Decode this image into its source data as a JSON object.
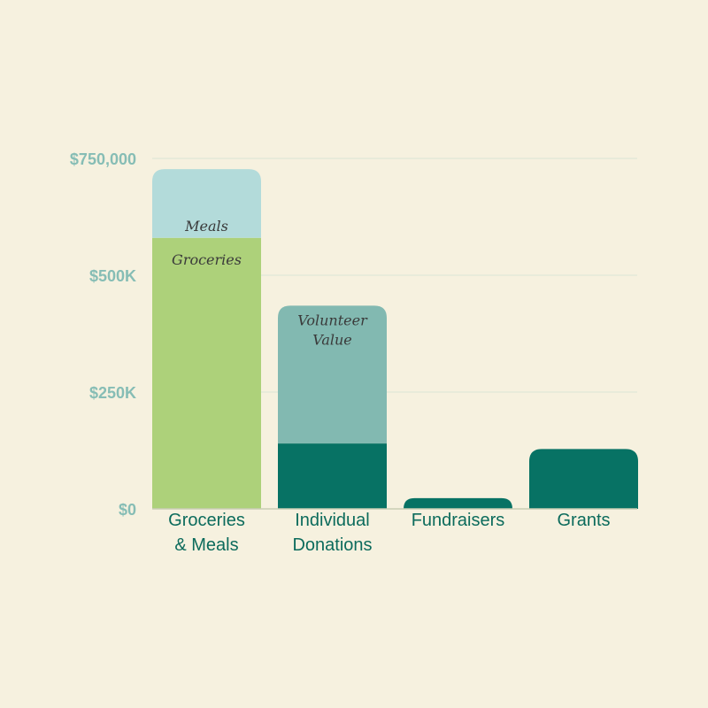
{
  "chart_data": {
    "type": "bar",
    "stacked": true,
    "categories": [
      [
        "Groceries",
        "& Meals"
      ],
      [
        "Individual",
        "Donations"
      ],
      [
        "Fundraisers"
      ],
      [
        "Grants"
      ]
    ],
    "yticks": [
      {
        "value": 0,
        "label": "$0"
      },
      {
        "value": 250000,
        "label": "$250K"
      },
      {
        "value": 500000,
        "label": "$500K"
      },
      {
        "value": 750000,
        "label": "$750,000"
      }
    ],
    "ylim": [
      0,
      750000
    ],
    "grid": true,
    "bars": [
      {
        "category_index": 0,
        "segments": [
          {
            "label": "Groceries",
            "value": 580000,
            "color": "#add17a"
          },
          {
            "label": "Meals",
            "value": 147000,
            "color": "#b3dbda"
          }
        ]
      },
      {
        "category_index": 1,
        "segments": [
          {
            "label": "",
            "value": 140000,
            "color": "#077264"
          },
          {
            "label": [
              "Volunteer",
              "Value"
            ],
            "value": 295000,
            "color": "#82b9b1"
          }
        ]
      },
      {
        "category_index": 2,
        "segments": [
          {
            "label": "",
            "value": 23000,
            "color": "#077264"
          }
        ]
      },
      {
        "category_index": 3,
        "segments": [
          {
            "label": "",
            "value": 128000,
            "color": "#077264"
          }
        ]
      }
    ],
    "colors": {
      "background": "#f6f1df",
      "grid": "#dfe8d6",
      "baseline": "#c9cdb4",
      "tick_text": "#86bdb5",
      "category_text": "#0c6b5c",
      "segment_text": "#3a3a3a"
    }
  }
}
